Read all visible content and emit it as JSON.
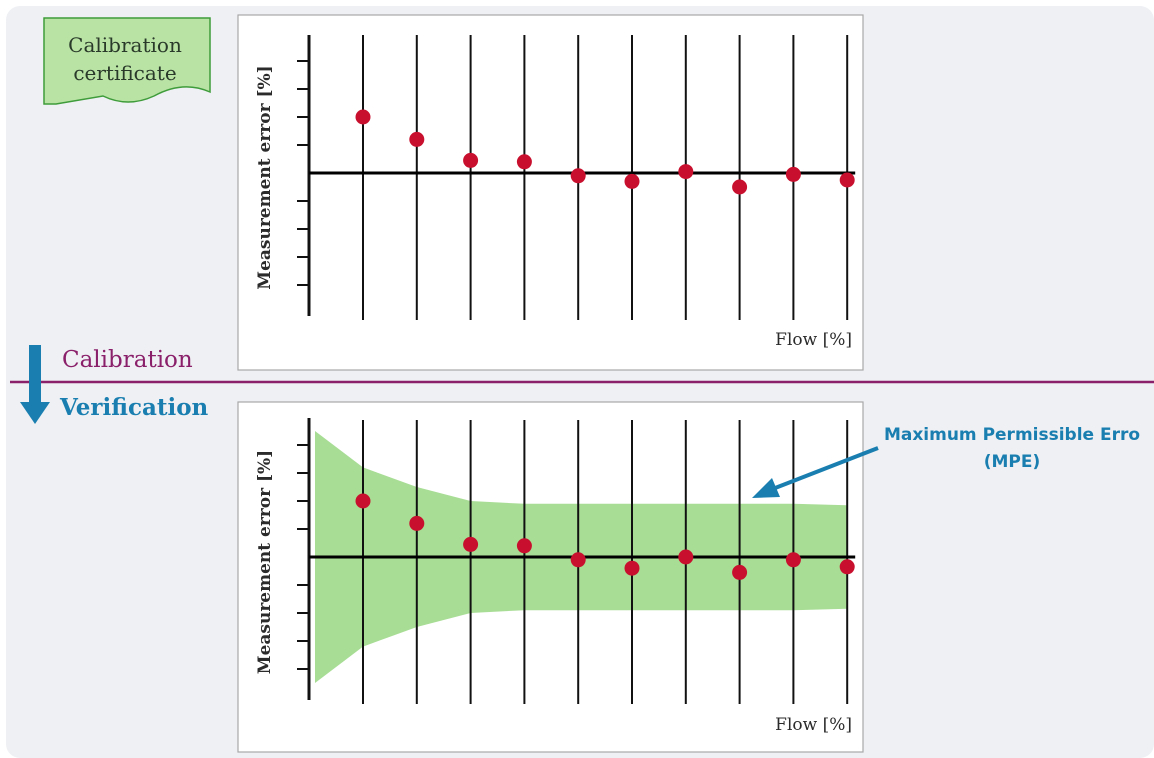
{
  "certificate": {
    "line1": "Calibration",
    "line2": "certificate"
  },
  "stages": {
    "calibration": "Calibration",
    "verification": "Verification"
  },
  "mpe": {
    "line1": "Maximum Permissible Erro",
    "line2": "(MPE)"
  },
  "colors": {
    "panel_background": "#eef0f3",
    "point": "#c8102e",
    "mpe_band": "#9fd98a",
    "divider": "#8a1f6a",
    "arrow": "#1a7fb0",
    "certificate_fill": "#b9e3a4",
    "certificate_border": "#3f9c3a"
  },
  "charts": [
    {
      "type": "scatter",
      "title": "",
      "ylabel": "Measurement error [%]",
      "xlabel": "Flow [%]",
      "x_ticks_unlabeled": 10,
      "y_ticks_unlabeled": [
        -4,
        -3,
        -2,
        -1,
        1,
        2,
        3,
        4
      ],
      "ylim": [
        -5,
        5
      ],
      "values": [
        2.0,
        1.2,
        0.45,
        0.4,
        -0.1,
        -0.3,
        0.05,
        -0.5,
        -0.05,
        -0.25
      ],
      "mpe_band": false
    },
    {
      "type": "scatter",
      "title": "",
      "ylabel": "Measurement error [%]",
      "xlabel": "Flow [%]",
      "x_ticks_unlabeled": 10,
      "y_ticks_unlabeled": [
        -4,
        -3,
        -2,
        -1,
        1,
        2,
        3,
        4
      ],
      "ylim": [
        -5,
        5
      ],
      "values": [
        2.0,
        1.2,
        0.45,
        0.4,
        -0.1,
        -0.4,
        0.0,
        -0.55,
        -0.1,
        -0.35
      ],
      "mpe_band": true,
      "mpe_upper": [
        4.5,
        3.2,
        2.5,
        2.0,
        1.9,
        1.9,
        1.9,
        1.9,
        1.9,
        1.9,
        1.85
      ],
      "mpe_lower": [
        -4.5,
        -3.2,
        -2.5,
        -2.0,
        -1.9,
        -1.9,
        -1.9,
        -1.9,
        -1.9,
        -1.9,
        -1.85
      ]
    }
  ]
}
